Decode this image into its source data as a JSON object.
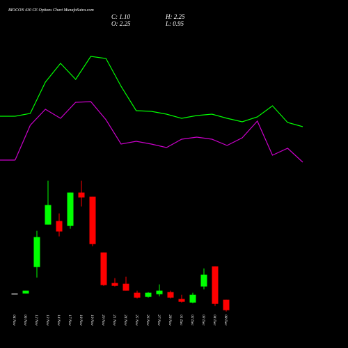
{
  "chart_data": {
    "type": "candlestick",
    "title": "BIOCON 430 CE Options Chart MunafaSutra.com",
    "ohlc_labels": [
      "C: 1.10",
      "H: 2.25",
      "O: 2.25",
      "L: 0.95"
    ],
    "categories": [
      "04 Nov",
      "06 Nov",
      "12 Nov",
      "13 Nov",
      "14 Nov",
      "17 Nov",
      "18 Nov",
      "19 Nov",
      "20 Nov",
      "21 Nov",
      "24 Nov",
      "25 Nov",
      "26 Nov",
      "27 Nov",
      "28 Nov",
      "01 Dec",
      "02 Dec",
      "03 Dec",
      "04 Dec",
      "08 Dec"
    ],
    "open": [
      2.94,
      2.94,
      5.85,
      10.53,
      10.92,
      10.38,
      14.06,
      13.6,
      7.46,
      4.09,
      4.01,
      3.02,
      2.56,
      2.86,
      3.09,
      2.33,
      1.94,
      3.71,
      5.93,
      2.25
    ],
    "high": [
      2.94,
      3.25,
      9.84,
      15.36,
      11.76,
      14.06,
      15.36,
      13.6,
      7.46,
      4.63,
      4.78,
      3.25,
      3.09,
      3.94,
      3.25,
      2.79,
      3.02,
      5.7,
      5.93,
      2.25
    ],
    "low": [
      2.94,
      2.94,
      4.7,
      10.53,
      9.23,
      10.07,
      12.53,
      8.15,
      3.78,
      3.71,
      3.25,
      2.4,
      2.48,
      2.63,
      2.4,
      1.94,
      1.87,
      3.4,
      1.56,
      0.95
    ],
    "close": [
      2.94,
      3.25,
      9.15,
      12.68,
      9.77,
      14.06,
      13.52,
      8.38,
      3.86,
      3.78,
      3.25,
      2.48,
      3.02,
      3.25,
      2.48,
      2.02,
      2.79,
      5.01,
      1.79,
      1.1
    ],
    "up_color": "#00ff00",
    "down_color": "#ff0000",
    "flat_color": "#cccccc",
    "ylim": [
      0,
      16.1
    ],
    "y2lim": [
      0,
      100
    ],
    "series": [
      {
        "color": "#00ff00",
        "axis": "y2",
        "values": [
          33.2,
          34.8,
          52.8,
          63.6,
          54.4,
          67.6,
          66.4,
          50.4,
          36.4,
          36,
          34.4,
          32,
          33.6,
          34.4,
          32,
          30,
          32.8,
          39.2,
          29.6,
          27.2
        ]
      },
      {
        "color": "#cc00cc",
        "axis": "y2",
        "values": [
          8,
          28,
          37.2,
          32,
          41.2,
          41.6,
          31.2,
          17.2,
          18.8,
          17.2,
          15.2,
          20,
          21.2,
          20,
          16.4,
          20.8,
          30.4,
          10.8,
          14.8,
          6.8
        ]
      }
    ]
  }
}
